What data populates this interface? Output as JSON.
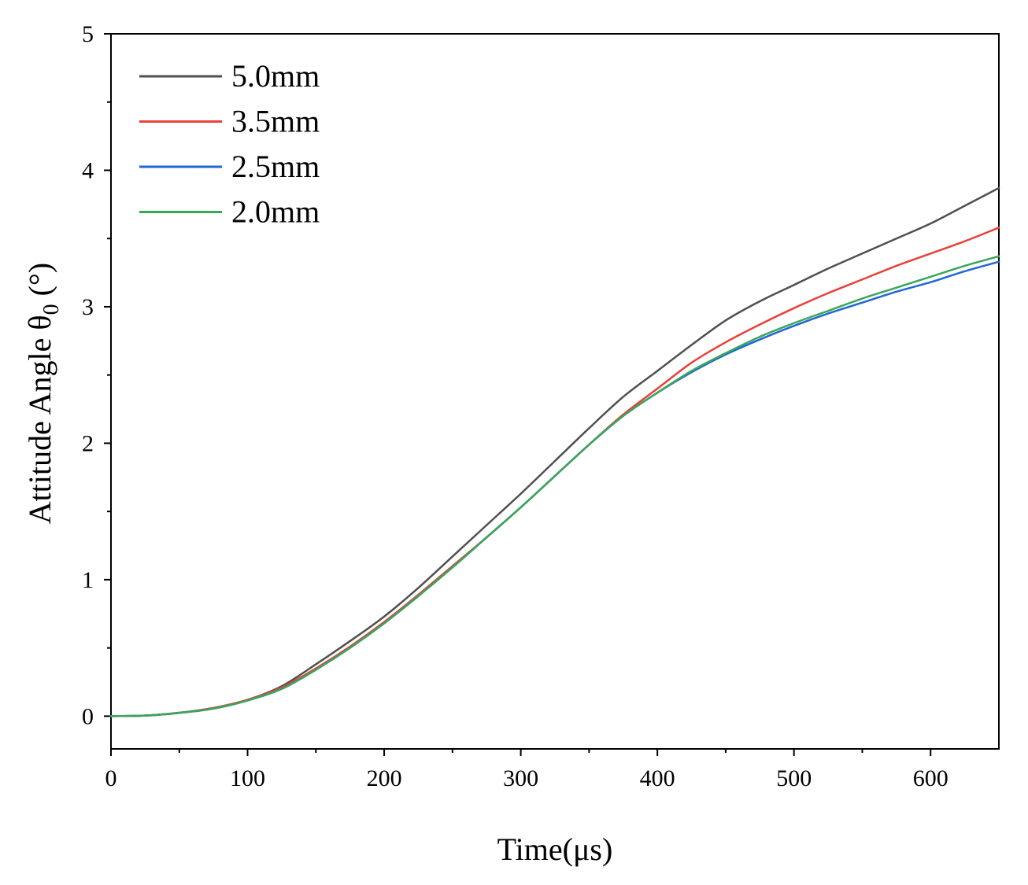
{
  "chart_data": {
    "type": "line",
    "title": "",
    "xlabel": "Time(μs)",
    "ylabel_main": "Attitude Angle θ",
    "ylabel_sub": "0",
    "ylabel_unit": " (°)",
    "xlim": [
      0,
      650
    ],
    "ylim": [
      -0.24,
      5
    ],
    "xticks": [
      0,
      100,
      200,
      300,
      400,
      500,
      600
    ],
    "xtick_labels": [
      "0",
      "100",
      "200",
      "300",
      "400",
      "500",
      "600"
    ],
    "yticks": [
      0,
      1,
      2,
      3,
      4,
      5
    ],
    "ytick_labels": [
      "0",
      "1",
      "2",
      "3",
      "4",
      "5"
    ],
    "x_minor_ticks": [
      50,
      150,
      250,
      350,
      450,
      550
    ],
    "y_minor_ticks": [
      0.5,
      1.5,
      2.5,
      3.5,
      4.5
    ],
    "grid": false,
    "legend_position": "top-left",
    "x": [
      0,
      25,
      50,
      75,
      100,
      125,
      150,
      175,
      200,
      225,
      250,
      275,
      300,
      325,
      350,
      375,
      400,
      425,
      450,
      475,
      500,
      525,
      550,
      575,
      600,
      625,
      650
    ],
    "series": [
      {
        "name": "5.0mm",
        "color": "#505050",
        "values": [
          0,
          0.004,
          0.025,
          0.06,
          0.12,
          0.22,
          0.38,
          0.55,
          0.73,
          0.94,
          1.17,
          1.4,
          1.63,
          1.87,
          2.11,
          2.34,
          2.53,
          2.72,
          2.9,
          3.04,
          3.16,
          3.28,
          3.39,
          3.5,
          3.61,
          3.74,
          3.87
        ]
      },
      {
        "name": "3.5mm",
        "color": "#e8413a",
        "values": [
          0,
          0.004,
          0.025,
          0.06,
          0.12,
          0.21,
          0.35,
          0.51,
          0.69,
          0.89,
          1.1,
          1.31,
          1.53,
          1.76,
          1.99,
          2.21,
          2.4,
          2.59,
          2.74,
          2.87,
          2.99,
          3.1,
          3.2,
          3.3,
          3.39,
          3.48,
          3.58
        ]
      },
      {
        "name": "2.5mm",
        "color": "#1f67d4",
        "values": [
          0,
          0.004,
          0.024,
          0.055,
          0.115,
          0.2,
          0.34,
          0.5,
          0.68,
          0.88,
          1.09,
          1.31,
          1.53,
          1.76,
          1.99,
          2.2,
          2.37,
          2.52,
          2.65,
          2.76,
          2.86,
          2.95,
          3.03,
          3.11,
          3.18,
          3.26,
          3.33
        ]
      },
      {
        "name": "2.0mm",
        "color": "#3aa65a",
        "values": [
          0,
          0.004,
          0.024,
          0.055,
          0.115,
          0.2,
          0.34,
          0.5,
          0.68,
          0.88,
          1.09,
          1.31,
          1.53,
          1.76,
          1.99,
          2.2,
          2.37,
          2.53,
          2.66,
          2.78,
          2.88,
          2.97,
          3.06,
          3.14,
          3.22,
          3.3,
          3.37
        ]
      }
    ]
  }
}
